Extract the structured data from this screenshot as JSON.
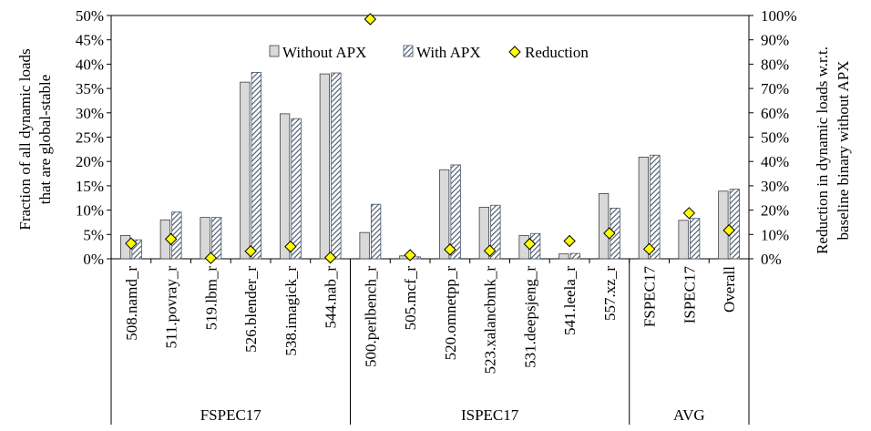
{
  "chart_data": {
    "type": "bar",
    "categories": [
      "508.namd_r",
      "511.povray_r",
      "519.lbm_r",
      "526.blender_r",
      "538.imagick_r",
      "544.nab_r",
      "500.perlbench_r",
      "505.mcf_r",
      "520.omnetpp_r",
      "523.xalancbmk_r",
      "531.deepsjeng_r",
      "541.leela_r",
      "557.xz_r",
      "FSPEC17",
      "ISPEC17",
      "Overall"
    ],
    "groups": [
      {
        "label": "FSPEC17",
        "count": 6
      },
      {
        "label": "ISPEC17",
        "count": 7
      },
      {
        "label": "AVG",
        "count": 3
      }
    ],
    "series": [
      {
        "name": "Without APX",
        "axis": "left",
        "kind": "bar",
        "color": "#d9d9d9",
        "values": [
          4.8,
          8.0,
          8.5,
          36.3,
          29.8,
          38.0,
          5.4,
          0.6,
          18.3,
          10.6,
          4.8,
          1.0,
          13.4,
          20.9,
          7.9,
          13.9
        ]
      },
      {
        "name": "With APX",
        "axis": "left",
        "kind": "bar",
        "pattern": "diagonal-hatch",
        "color": "#44546a",
        "values": [
          3.9,
          9.6,
          8.5,
          38.3,
          28.8,
          38.2,
          11.2,
          0.4,
          19.3,
          11.0,
          5.2,
          1.1,
          10.4,
          21.3,
          8.3,
          14.3
        ]
      },
      {
        "name": "Reduction",
        "axis": "right",
        "kind": "marker",
        "marker": "diamond",
        "color": "#ffff00",
        "values": [
          6.3,
          8.1,
          0.3,
          3.1,
          5.0,
          0.5,
          98.5,
          1.5,
          3.8,
          3.3,
          6.1,
          7.3,
          10.5,
          4.0,
          18.8,
          11.7
        ]
      }
    ],
    "y_left": {
      "label_line1": "Fraction of all dynamic loads",
      "label_line2": "that are global-stable",
      "lim": [
        0,
        50
      ],
      "ticks": [
        "0%",
        "5%",
        "10%",
        "15%",
        "20%",
        "25%",
        "30%",
        "35%",
        "40%",
        "45%",
        "50%"
      ]
    },
    "y_right": {
      "label_line1": "Reduction in dynamic loads  w.r.t.",
      "label_line2": "baseline binary without APX",
      "lim": [
        0,
        100
      ],
      "ticks": [
        "0%",
        "10%",
        "20%",
        "30%",
        "40%",
        "50%",
        "60%",
        "70%",
        "80%",
        "90%",
        "100%"
      ]
    },
    "legend_position": "top-center",
    "grid": false
  }
}
